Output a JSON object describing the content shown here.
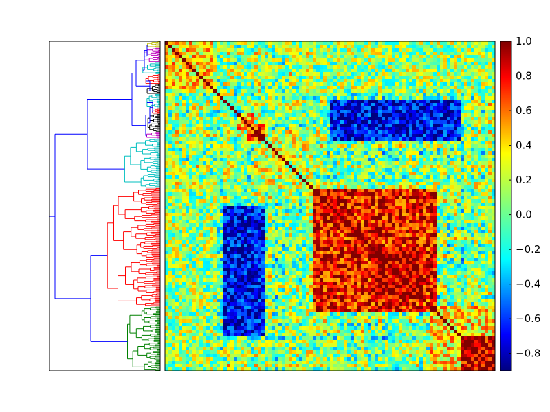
{
  "chart_data": {
    "type": "heatmap",
    "title": "",
    "xlabel": "",
    "ylabel": "",
    "colormap": "jet",
    "colorbar": {
      "range": [
        -0.9,
        1.0
      ],
      "ticks": [
        1.0,
        0.8,
        0.6,
        0.4,
        0.2,
        0.0,
        -0.2,
        -0.4,
        -0.6,
        -0.8
      ],
      "tick_labels": [
        "1.0",
        "0.8",
        "0.6",
        "0.4",
        "0.2",
        "0.0",
        "−0.2",
        "−0.4",
        "−0.6",
        "−0.8"
      ]
    },
    "matrix": {
      "kind": "correlation",
      "symmetric": true,
      "diagonal_value": 1.0,
      "resolution": 96,
      "clusters": [
        {
          "name": "olive",
          "color": "#bfbf00",
          "fraction": 0.02,
          "within": 0.35
        },
        {
          "name": "magenta",
          "color": "#bf00bf",
          "fraction": 0.045,
          "within": 0.3
        },
        {
          "name": "cyan",
          "color": "#00bfbf",
          "fraction": 0.035,
          "within": 0.25
        },
        {
          "name": "red",
          "color": "#ff0000",
          "fraction": 0.03,
          "within": 0.3
        },
        {
          "name": "black",
          "color": "#000000",
          "fraction": 0.03,
          "within": 0.3
        },
        {
          "name": "cyan",
          "color": "#00bfbf",
          "fraction": 0.045,
          "within": 0.2
        },
        {
          "name": "red",
          "color": "#ff0000",
          "fraction": 0.015,
          "within": 0.35
        },
        {
          "name": "black",
          "color": "#000000",
          "fraction": 0.055,
          "within": 0.4
        },
        {
          "name": "magenta",
          "color": "#bf00bf",
          "fraction": 0.02,
          "within": 0.3
        },
        {
          "name": "cyan",
          "color": "#00bfbf",
          "fraction": 0.15,
          "within": 0.2
        },
        {
          "name": "red",
          "color": "#ff0000",
          "fraction": 0.36,
          "within": 0.55
        },
        {
          "name": "green",
          "color": "#008000",
          "fraction": 0.195,
          "within": 0.35
        }
      ],
      "block_structure": [
        {
          "rows": [
            0.45,
            0.82
          ],
          "cols": [
            0.45,
            0.82
          ],
          "value": 0.75
        },
        {
          "rows": [
            0.62,
            0.78
          ],
          "cols": [
            0.62,
            0.78
          ],
          "value": 0.9
        },
        {
          "rows": [
            0.9,
            1.0
          ],
          "cols": [
            0.9,
            1.0
          ],
          "value": 0.85
        },
        {
          "rows": [
            0.25,
            0.3
          ],
          "cols": [
            0.25,
            0.3
          ],
          "value": 0.75
        },
        {
          "rows": [
            0.18,
            0.3
          ],
          "cols": [
            0.5,
            0.9
          ],
          "value": -0.7
        },
        {
          "rows": [
            0.5,
            0.9
          ],
          "cols": [
            0.18,
            0.3
          ],
          "value": -0.7
        },
        {
          "rows": [
            0.0,
            0.15
          ],
          "cols": [
            0.0,
            0.15
          ],
          "value": 0.35
        },
        {
          "rows": [
            0.0,
            0.15
          ],
          "cols": [
            0.45,
            1.0
          ],
          "value": 0.1
        }
      ]
    },
    "dendrogram": {
      "orientation": "left",
      "link_color_above_threshold": "#0000ff",
      "cluster_colors": [
        "#bfbf00",
        "#bf00bf",
        "#00bfbf",
        "#ff0000",
        "#000000",
        "#008000"
      ]
    },
    "grid": false,
    "legend": "none"
  }
}
